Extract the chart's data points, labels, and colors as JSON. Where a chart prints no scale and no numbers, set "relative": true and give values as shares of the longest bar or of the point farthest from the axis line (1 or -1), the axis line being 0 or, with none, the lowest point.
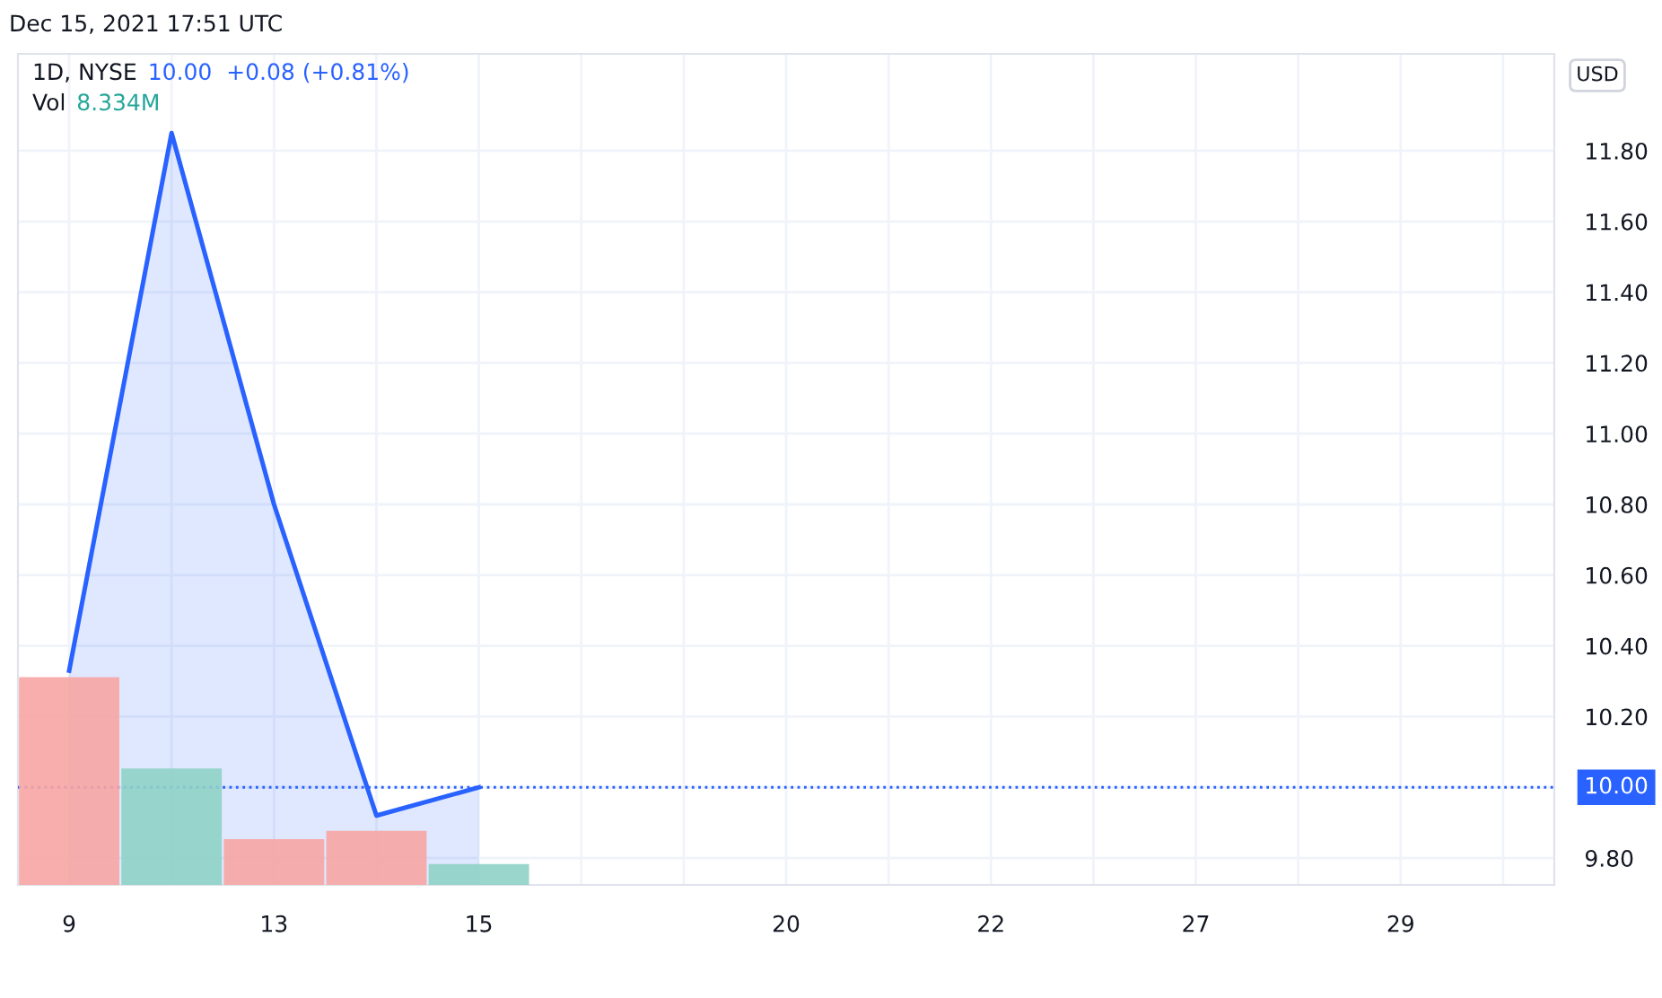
{
  "chart_data": [
    {
      "type": "area",
      "title": "1D, NYSE",
      "annotations": [
        "10.00  +0.08 (+0.81%)",
        "Dec 15, 2021 17:51 UTC",
        "USD"
      ],
      "categories": [
        "9",
        null,
        "13",
        null,
        "15",
        null,
        null,
        "20",
        null,
        "22",
        null,
        "27",
        null,
        "29",
        null
      ],
      "series": [
        {
          "color": "#2962ff",
          "values": [
            10.33,
            11.85,
            10.8,
            9.92,
            10.0,
            null,
            null,
            null,
            null,
            null,
            null,
            null,
            null,
            null,
            null
          ]
        }
      ],
      "ylim": [
        9.724,
        12.074
      ],
      "yticks": [
        {
          "value": 9.8,
          "label": "9.80"
        },
        {
          "value": 10.0,
          "label": null
        },
        {
          "value": 10.2,
          "label": "10.20"
        },
        {
          "value": 10.4,
          "label": "10.40"
        },
        {
          "value": 10.6,
          "label": "10.60"
        },
        {
          "value": 10.8,
          "label": "10.80"
        },
        {
          "value": 11.0,
          "label": "11.00"
        },
        {
          "value": 11.2,
          "label": "11.20"
        },
        {
          "value": 11.4,
          "label": "11.40"
        },
        {
          "value": 11.6,
          "label": "11.60"
        },
        {
          "value": 11.8,
          "label": "11.80"
        }
      ],
      "ref_lines": [
        {
          "axis": "y",
          "value": 10.0,
          "label": "10.00",
          "color": "#2962ff",
          "line_style": "dotted"
        }
      ],
      "grid": true
    },
    {
      "type": "bar",
      "relative": true,
      "tick_labels": false,
      "annotations": [
        "Vol",
        "8.334M"
      ],
      "categories": [
        "9",
        null,
        "13",
        null,
        "15",
        null,
        null,
        "20",
        null,
        "22",
        null,
        "27",
        null,
        "29",
        null
      ],
      "colors": [
        "#f7a5a3",
        "#8fd1c7",
        "#f7a5a3",
        "#f7a5a3",
        "#8fd1c7",
        null,
        null,
        null,
        null,
        null,
        null,
        null,
        null,
        null,
        null
      ],
      "values": [
        1,
        0.56,
        0.22,
        0.26,
        0.1,
        null,
        null,
        null,
        null,
        null,
        null,
        null,
        null,
        null,
        null
      ]
    }
  ]
}
